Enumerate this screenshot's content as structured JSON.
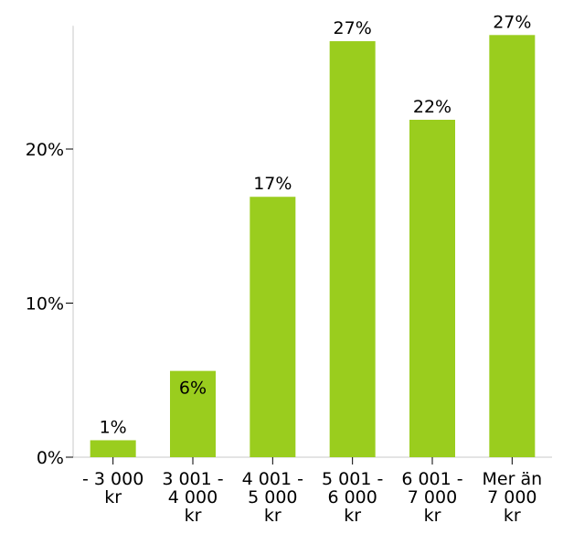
{
  "chart_data": {
    "type": "bar",
    "categories": [
      [
        "- 3 000",
        "kr"
      ],
      [
        "3 001 -",
        "4 000",
        "kr"
      ],
      [
        "4 001 -",
        "5 000",
        "kr"
      ],
      [
        "5 001 -",
        "6 000",
        "kr"
      ],
      [
        "6 001 -",
        "7 000",
        "kr"
      ],
      [
        "Mer än",
        "7 000",
        "kr"
      ]
    ],
    "values": [
      1.1,
      5.6,
      16.9,
      27.0,
      21.9,
      27.4
    ],
    "data_labels": [
      "1%",
      "6%",
      "17%",
      "27%",
      "22%",
      "27%"
    ],
    "yticks": [
      {
        "value": 0,
        "label": "0%"
      },
      {
        "value": 10,
        "label": "10%"
      },
      {
        "value": 20,
        "label": "20%"
      }
    ],
    "ylim": [
      0,
      28
    ],
    "bar_color": "#9acd1e",
    "axis_color": "#c8c8c8",
    "grid": false,
    "title": "",
    "xlabel": "",
    "ylabel": ""
  }
}
